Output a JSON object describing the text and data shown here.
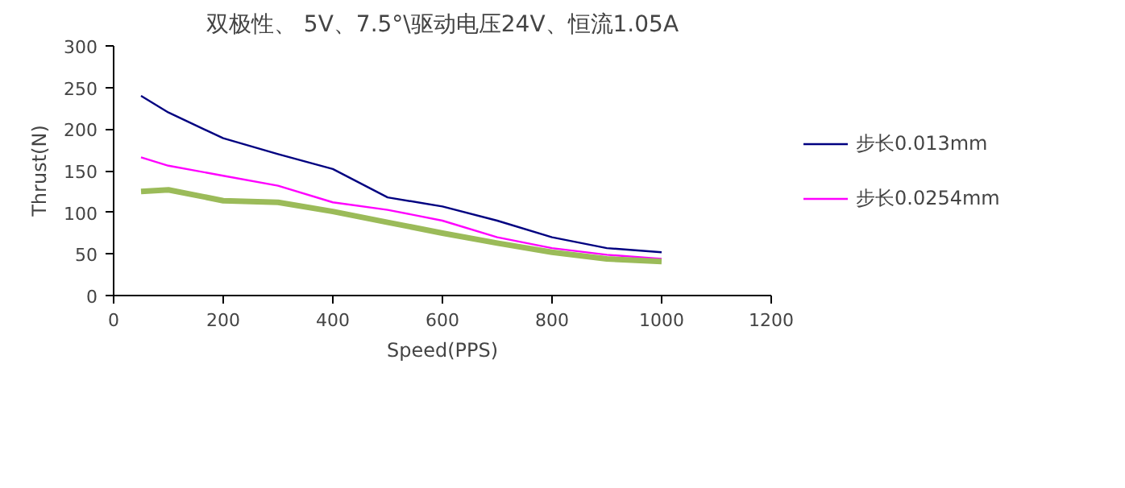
{
  "chart_data": {
    "type": "line",
    "title": "双极性、 5V、7.5°\\驱动电压24V、恒流1.05A",
    "xlabel": "Speed(PPS)",
    "ylabel": "Thrust(N)",
    "x": [
      50,
      100,
      200,
      300,
      400,
      500,
      600,
      700,
      800,
      900,
      1000
    ],
    "series": [
      {
        "name": "步长0.013mm",
        "color": "#000080",
        "values": [
          240,
          220,
          189,
          170,
          152,
          118,
          107,
          90,
          70,
          57,
          52
        ]
      },
      {
        "name": "步长0.0254mm",
        "color": "#ff00ff",
        "values": [
          166,
          156,
          144,
          132,
          112,
          103,
          90,
          70,
          57,
          49,
          44
        ]
      },
      {
        "color": "#9bbb59",
        "values": [
          125,
          127,
          114,
          112,
          101,
          88,
          75,
          63,
          52,
          44,
          41
        ]
      }
    ],
    "xlim": [
      0,
      1200
    ],
    "xticks": [
      0,
      200,
      400,
      600,
      800,
      1000,
      1200
    ],
    "ylim": [
      0,
      300
    ],
    "yticks": [
      0,
      50,
      100,
      150,
      200,
      250,
      300
    ],
    "grid": false,
    "legend": "right",
    "marker": "none",
    "line_style": "solid"
  }
}
